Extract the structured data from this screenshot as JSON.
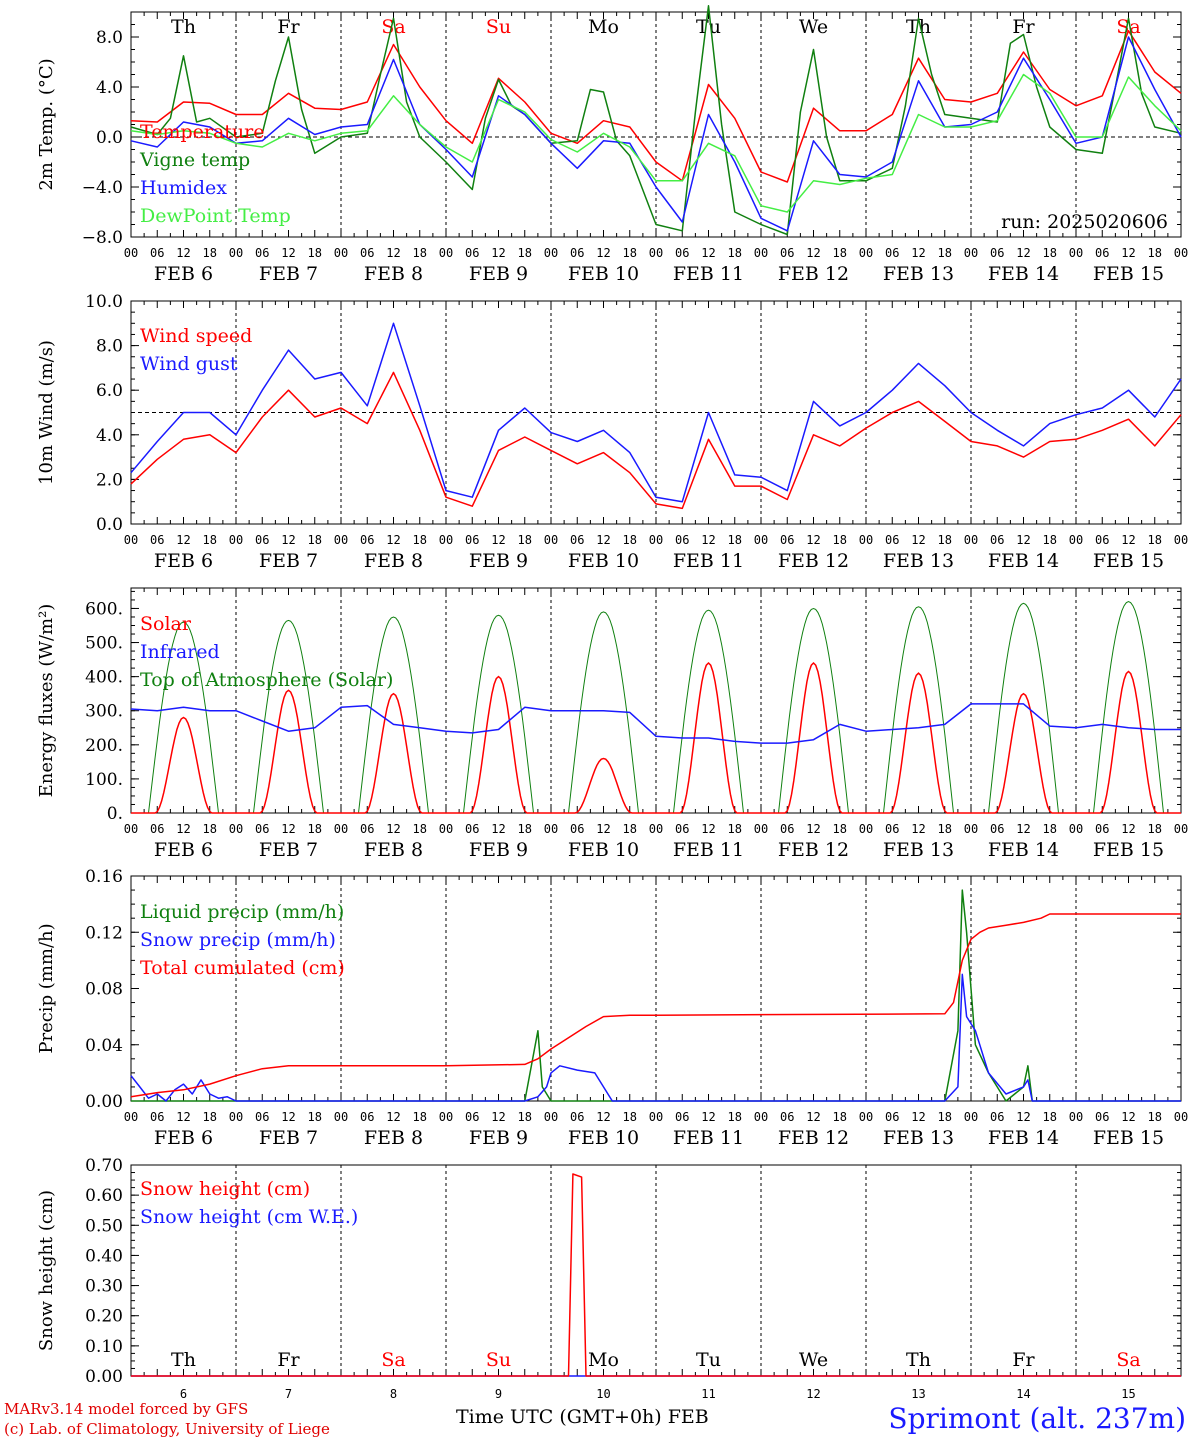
{
  "run_label": "run: 2025020606",
  "station": "Sprimont (alt. 237m)",
  "xaxis_title": "Time UTC (GMT+0h) FEB",
  "footer": [
    "MARv3.14 model forced by GFS",
    "(c) Lab. of Climatology, University of Liege"
  ],
  "colors": {
    "red": "#ff0000",
    "dkgreen": "#108010",
    "blue": "#1a1aff",
    "ltgreen": "#44ee44"
  },
  "days": [
    "Th",
    "Fr",
    "Sa",
    "Su",
    "Mo",
    "Tu",
    "We",
    "Th",
    "Fr",
    "Sa"
  ],
  "weekend_days": [
    2,
    3,
    9
  ],
  "dates": [
    "FEB  6",
    "FEB  7",
    "FEB  8",
    "FEB  9",
    "FEB 10",
    "FEB 11",
    "FEB 12",
    "FEB 13",
    "FEB 14",
    "FEB 15"
  ],
  "bottom_dates": [
    "6",
    "7",
    "8",
    "9",
    "10",
    "11",
    "12",
    "13",
    "14",
    "15"
  ],
  "hours": [
    "00",
    "06",
    "12",
    "18"
  ],
  "chart_data": [
    {
      "type": "line",
      "ylabel": "2m Temp. (°C)",
      "ylim": [
        -8,
        10
      ],
      "yticks": [
        -8,
        -4,
        0,
        4,
        8
      ],
      "yticklabels": [
        "−8.0",
        "−4.0",
        "0.0",
        "4.0",
        "8.0"
      ],
      "dashed_ref": 0,
      "x_unit": "hours since FEB 6 00 UTC",
      "legend": [
        {
          "name": "Temperature",
          "color": "#ff0000"
        },
        {
          "name": "Vigne temp",
          "color": "#108010"
        },
        {
          "name": "Humidex",
          "color": "#1a1aff"
        },
        {
          "name": "DewPoint Temp",
          "color": "#44ee44"
        }
      ],
      "series": [
        {
          "name": "Temperature",
          "color": "#ff0000",
          "x": [
            0,
            6,
            12,
            18,
            24,
            30,
            36,
            42,
            48,
            54,
            60,
            66,
            72,
            78,
            84,
            90,
            96,
            102,
            108,
            114,
            120,
            126,
            132,
            138,
            144,
            150,
            156,
            162,
            168,
            174,
            180,
            186,
            192,
            198,
            204,
            210,
            216,
            222,
            228,
            234,
            240
          ],
          "y": [
            1.3,
            1.2,
            2.8,
            2.7,
            1.8,
            1.8,
            3.5,
            2.3,
            2.2,
            2.8,
            7.4,
            4.0,
            1.3,
            -0.5,
            4.7,
            2.8,
            0.3,
            -0.5,
            1.3,
            0.8,
            -2.0,
            -3.5,
            4.2,
            1.5,
            -2.8,
            -3.6,
            2.3,
            0.5,
            0.5,
            1.8,
            6.3,
            3.0,
            2.8,
            3.5,
            6.8,
            3.8,
            2.5,
            3.3,
            8.5,
            5.2,
            3.5
          ]
        },
        {
          "name": "Vigne temp",
          "color": "#108010",
          "x": [
            0,
            6,
            9,
            12,
            15,
            18,
            24,
            30,
            33,
            36,
            39,
            42,
            48,
            54,
            57,
            60,
            63,
            66,
            72,
            78,
            81,
            84,
            87,
            90,
            96,
            102,
            105,
            108,
            111,
            114,
            120,
            126,
            129,
            132,
            135,
            138,
            144,
            150,
            153,
            156,
            159,
            162,
            168,
            174,
            177,
            180,
            183,
            186,
            192,
            198,
            201,
            204,
            207,
            210,
            216,
            222,
            225,
            228,
            231,
            234,
            240
          ],
          "y": [
            0.8,
            0.2,
            1.5,
            6.5,
            1.2,
            1.5,
            0,
            0.3,
            4.5,
            8.0,
            2.2,
            -1.3,
            0,
            0.3,
            5.0,
            9.5,
            2.8,
            0,
            -2.0,
            -4.2,
            1.5,
            4.6,
            2.5,
            1.8,
            -0.5,
            -0.3,
            3.8,
            3.6,
            -0.3,
            -1.5,
            -7.0,
            -7.5,
            2.0,
            10.5,
            1.0,
            -6.0,
            -7.0,
            -7.8,
            2.0,
            7.0,
            0,
            -3.5,
            -3.5,
            -2.5,
            2.5,
            9.5,
            5.0,
            1.8,
            1.5,
            1.2,
            7.5,
            8.2,
            4.0,
            0.8,
            -1.0,
            -1.3,
            4.0,
            9.5,
            3.5,
            0.8,
            0.3
          ]
        },
        {
          "name": "Humidex",
          "color": "#1a1aff",
          "x": [
            0,
            6,
            12,
            18,
            24,
            30,
            36,
            42,
            48,
            54,
            60,
            66,
            72,
            78,
            84,
            90,
            96,
            102,
            108,
            114,
            120,
            126,
            132,
            138,
            144,
            150,
            156,
            162,
            168,
            174,
            180,
            186,
            192,
            198,
            204,
            210,
            216,
            222,
            228,
            234,
            240
          ],
          "y": [
            -0.3,
            -0.8,
            1.2,
            0.8,
            -0.5,
            -0.3,
            1.5,
            0.2,
            0.8,
            1.0,
            6.2,
            1.0,
            -1.0,
            -3.2,
            3.3,
            1.8,
            -0.5,
            -2.5,
            -0.3,
            -0.5,
            -4.0,
            -6.8,
            1.8,
            -2.0,
            -6.5,
            -7.5,
            -0.3,
            -3.0,
            -3.2,
            -2.0,
            4.5,
            0.8,
            1.0,
            2.0,
            6.3,
            3.0,
            -0.5,
            0,
            8.0,
            3.8,
            0
          ]
        },
        {
          "name": "DewPoint Temp",
          "color": "#44ee44",
          "x": [
            0,
            6,
            12,
            18,
            24,
            30,
            36,
            42,
            48,
            54,
            60,
            66,
            72,
            78,
            84,
            90,
            96,
            102,
            108,
            114,
            120,
            126,
            132,
            138,
            144,
            150,
            156,
            162,
            168,
            174,
            180,
            186,
            192,
            198,
            204,
            210,
            216,
            222,
            228,
            234,
            240
          ],
          "y": [
            0.5,
            0.2,
            0.5,
            0.3,
            -0.5,
            -0.8,
            0.3,
            -0.3,
            0.3,
            0.5,
            3.3,
            1.0,
            -0.8,
            -2.0,
            3.0,
            2.0,
            -0.2,
            -1.2,
            0.3,
            -0.8,
            -3.5,
            -3.5,
            -0.5,
            -1.5,
            -5.5,
            -6.0,
            -3.5,
            -3.8,
            -3.3,
            -3.0,
            1.8,
            0.8,
            0.8,
            1.3,
            5.0,
            3.5,
            0,
            0,
            4.8,
            2.5,
            0.5
          ]
        }
      ]
    },
    {
      "type": "line",
      "ylabel": "10m Wind (m/s)",
      "ylim": [
        0,
        10
      ],
      "yticks": [
        0,
        2,
        4,
        6,
        8,
        10
      ],
      "yticklabels": [
        "0.0",
        "2.0",
        "4.0",
        "6.0",
        "8.0",
        "10.0"
      ],
      "dashed_ref": 5,
      "legend": [
        {
          "name": "Wind speed",
          "color": "#ff0000"
        },
        {
          "name": "Wind gust",
          "color": "#1a1aff"
        }
      ],
      "series": [
        {
          "name": "Wind speed",
          "color": "#ff0000",
          "x": [
            0,
            6,
            12,
            18,
            24,
            30,
            36,
            42,
            48,
            54,
            60,
            66,
            72,
            78,
            84,
            90,
            96,
            102,
            108,
            114,
            120,
            126,
            132,
            138,
            144,
            150,
            156,
            162,
            168,
            174,
            180,
            186,
            192,
            198,
            204,
            210,
            216,
            222,
            228,
            234,
            240
          ],
          "y": [
            1.8,
            2.9,
            3.8,
            4.0,
            3.2,
            4.8,
            6.0,
            4.8,
            5.2,
            4.5,
            6.8,
            4.2,
            1.2,
            0.8,
            3.3,
            3.9,
            3.3,
            2.7,
            3.2,
            2.3,
            0.9,
            0.7,
            3.8,
            1.7,
            1.7,
            1.1,
            4.0,
            3.5,
            4.3,
            5.0,
            5.5,
            4.6,
            3.7,
            3.5,
            3.0,
            3.7,
            3.8,
            4.2,
            4.7,
            3.5,
            4.9
          ]
        },
        {
          "name": "Wind gust",
          "color": "#1a1aff",
          "x": [
            0,
            6,
            12,
            18,
            24,
            30,
            36,
            42,
            48,
            54,
            60,
            66,
            72,
            78,
            84,
            90,
            96,
            102,
            108,
            114,
            120,
            126,
            132,
            138,
            144,
            150,
            156,
            162,
            168,
            174,
            180,
            186,
            192,
            198,
            204,
            210,
            216,
            222,
            228,
            234,
            240
          ],
          "y": [
            2.3,
            3.7,
            5.0,
            5.0,
            4.0,
            6.0,
            7.8,
            6.5,
            6.8,
            5.3,
            9.0,
            5.3,
            1.5,
            1.2,
            4.2,
            5.2,
            4.1,
            3.7,
            4.2,
            3.2,
            1.2,
            1.0,
            5.0,
            2.2,
            2.1,
            1.5,
            5.5,
            4.4,
            5.0,
            6.0,
            7.2,
            6.2,
            5.0,
            4.2,
            3.5,
            4.5,
            4.9,
            5.2,
            6.0,
            4.8,
            6.5
          ]
        }
      ]
    },
    {
      "type": "line",
      "ylabel": "Energy fluxes (W/m²)",
      "ylim": [
        0,
        660
      ],
      "yticks": [
        0,
        100,
        200,
        300,
        400,
        500,
        600
      ],
      "yticklabels": [
        "0.",
        "100.",
        "200.",
        "300.",
        "400.",
        "500.",
        "600."
      ],
      "legend": [
        {
          "name": "Solar",
          "color": "#ff0000"
        },
        {
          "name": "Infrared",
          "color": "#1a1aff"
        },
        {
          "name": "Top of Atmosphere (Solar)",
          "color": "#108010"
        }
      ],
      "daily_peaks": {
        "solar": [
          280,
          360,
          350,
          400,
          160,
          440,
          440,
          410,
          350,
          415
        ],
        "toa": [
          560,
          565,
          575,
          580,
          590,
          595,
          600,
          605,
          615,
          620
        ]
      },
      "series": [
        {
          "name": "Infrared",
          "color": "#1a1aff",
          "x": [
            0,
            6,
            12,
            18,
            24,
            30,
            36,
            42,
            48,
            54,
            60,
            66,
            72,
            78,
            84,
            90,
            96,
            102,
            108,
            114,
            120,
            126,
            132,
            138,
            144,
            150,
            156,
            162,
            168,
            174,
            180,
            186,
            192,
            198,
            204,
            210,
            216,
            222,
            228,
            234,
            240
          ],
          "y": [
            305,
            300,
            310,
            300,
            300,
            270,
            240,
            250,
            310,
            315,
            260,
            250,
            240,
            235,
            245,
            310,
            300,
            300,
            300,
            295,
            225,
            220,
            220,
            210,
            205,
            205,
            215,
            260,
            240,
            245,
            250,
            260,
            320,
            320,
            320,
            255,
            250,
            260,
            250,
            245,
            245
          ]
        }
      ]
    },
    {
      "type": "line",
      "ylabel": "Precip (mm/h)",
      "ylim": [
        0,
        0.16
      ],
      "yticks": [
        0,
        0.04,
        0.08,
        0.12,
        0.16
      ],
      "yticklabels": [
        "0.00",
        "0.04",
        "0.08",
        "0.12",
        "0.16"
      ],
      "legend": [
        {
          "name": "Liquid precip (mm/h)",
          "color": "#108010"
        },
        {
          "name": "Snow precip (mm/h)",
          "color": "#1a1aff"
        },
        {
          "name": "Total cumulated (cm)",
          "color": "#ff0000"
        }
      ],
      "series": [
        {
          "name": "Liquid precip (mm/h)",
          "color": "#108010",
          "x": [
            0,
            90,
            93,
            94,
            96,
            100,
            186,
            189,
            190,
            191,
            193,
            196,
            200,
            204,
            205,
            206,
            208,
            240
          ],
          "y": [
            0,
            0,
            0.05,
            0.01,
            0,
            0,
            0,
            0.05,
            0.15,
            0.12,
            0.04,
            0.02,
            0,
            0.01,
            0.025,
            0,
            0,
            0
          ]
        },
        {
          "name": "Snow precip (mm/h)",
          "color": "#1a1aff",
          "x": [
            0,
            2,
            4,
            6,
            8,
            10,
            12,
            14,
            16,
            18,
            20,
            22,
            24,
            90,
            93,
            95,
            96,
            98,
            102,
            106,
            108,
            110,
            186,
            189,
            190,
            191,
            193,
            196,
            200,
            204,
            205,
            206,
            208,
            240
          ],
          "y": [
            0.018,
            0.01,
            0.002,
            0.005,
            0,
            0.008,
            0.012,
            0.005,
            0.015,
            0.005,
            0.002,
            0.003,
            0,
            0,
            0.003,
            0.01,
            0.02,
            0.025,
            0.022,
            0.02,
            0.01,
            0,
            0,
            0.01,
            0.09,
            0.06,
            0.05,
            0.02,
            0.005,
            0.01,
            0.015,
            0,
            0,
            0
          ]
        },
        {
          "name": "Total cumulated (cm)",
          "color": "#ff0000",
          "x": [
            0,
            6,
            12,
            18,
            24,
            30,
            36,
            42,
            48,
            72,
            90,
            93,
            96,
            100,
            104,
            108,
            114,
            120,
            186,
            188,
            189,
            190,
            192,
            194,
            196,
            200,
            204,
            208,
            210,
            240
          ],
          "y": [
            0.003,
            0.006,
            0.008,
            0.012,
            0.018,
            0.023,
            0.025,
            0.025,
            0.025,
            0.025,
            0.026,
            0.03,
            0.037,
            0.045,
            0.053,
            0.06,
            0.061,
            0.061,
            0.062,
            0.07,
            0.085,
            0.1,
            0.115,
            0.12,
            0.123,
            0.125,
            0.127,
            0.13,
            0.133,
            0.133
          ]
        }
      ]
    },
    {
      "type": "line",
      "ylabel": "Snow height (cm)",
      "ylim": [
        0,
        0.7
      ],
      "yticks": [
        0,
        0.1,
        0.2,
        0.3,
        0.4,
        0.5,
        0.6,
        0.7
      ],
      "yticklabels": [
        "0.00",
        "0.10",
        "0.20",
        "0.30",
        "0.40",
        "0.50",
        "0.60",
        "0.70"
      ],
      "legend": [
        {
          "name": "Snow height (cm)",
          "color": "#ff0000"
        },
        {
          "name": "Snow height (cm W.E.)",
          "color": "#1a1aff"
        }
      ],
      "series": [
        {
          "name": "Snow height (cm W.E.)",
          "color": "#1a1aff",
          "x": [
            0,
            240
          ],
          "y": [
            0,
            0
          ]
        },
        {
          "name": "Snow height (cm)",
          "color": "#ff0000",
          "x": [
            0,
            100,
            101,
            103,
            104,
            240
          ],
          "y": [
            0,
            0,
            0.67,
            0.66,
            0,
            0
          ]
        }
      ]
    }
  ]
}
